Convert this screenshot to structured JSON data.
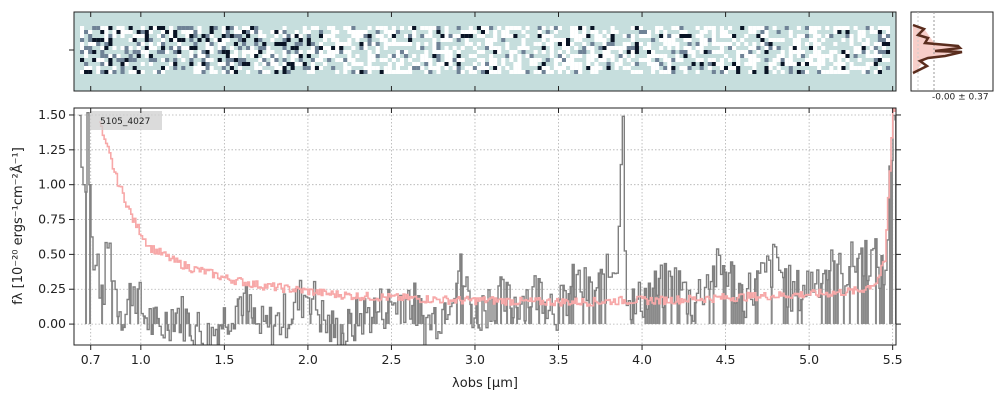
{
  "chart_data": [
    {
      "type": "heatmap",
      "description_free": true,
      "x_range": [
        0.6,
        5.52
      ],
      "y_ticks": [
        ""
      ],
      "colormap": [
        "#c6dedd",
        "#ffffff",
        "#6f8296",
        "#0a1425"
      ]
    },
    {
      "type": "line",
      "orientation": "horizontal-profile",
      "annotation": "-0.00 ± 0.37"
    },
    {
      "type": "line",
      "label": "5105_4027",
      "xlabel": "λobs [μm]",
      "ylabel": "fλ [10⁻²⁰ ergs⁻¹cm⁻²Å⁻¹]",
      "xlim": [
        0.6,
        5.52
      ],
      "ylim": [
        -0.15,
        1.55
      ],
      "x_ticks": [
        0.7,
        1.0,
        1.5,
        2.0,
        2.5,
        3.0,
        3.5,
        4.0,
        4.5,
        5.0,
        5.5
      ],
      "x_tick_labels": [
        "0.7",
        "1.0",
        "1.5",
        "2.0",
        "2.5",
        "3.0",
        "3.5",
        "4.0",
        "4.5",
        "5.0",
        "5.5"
      ],
      "y_ticks": [
        0.0,
        0.25,
        0.5,
        0.75,
        1.0,
        1.25,
        1.5
      ],
      "y_tick_labels": [
        "0.00",
        "0.25",
        "0.50",
        "0.75",
        "1.00",
        "1.25",
        "1.50"
      ],
      "grid": true,
      "colors": {
        "flux": "#7f7f7f",
        "model": "#f7a8a8",
        "model_dark": "#e46b6b"
      },
      "series": [
        {
          "id": "flux",
          "x": [
            0.63,
            0.66,
            0.68,
            0.7,
            0.72,
            0.74,
            0.76,
            0.8,
            0.85,
            0.9,
            0.95,
            1.0,
            1.1,
            1.2,
            1.3,
            1.4,
            1.5,
            1.6,
            1.7,
            1.8,
            1.9,
            2.0,
            2.1,
            2.2,
            2.3,
            2.4,
            2.5,
            2.6,
            2.7,
            2.8,
            2.9,
            3.0,
            3.1,
            3.2,
            3.3,
            3.4,
            3.5,
            3.6,
            3.7,
            3.8,
            3.85,
            3.88,
            3.9,
            3.95,
            4.0,
            4.1,
            4.2,
            4.3,
            4.4,
            4.5,
            4.6,
            4.7,
            4.8,
            4.9,
            5.0,
            5.1,
            5.2,
            5.3,
            5.4,
            5.45,
            5.5
          ],
          "y": [
            1.5,
            0.9,
            1.55,
            0.6,
            0.3,
            0.5,
            0.1,
            0.6,
            0.2,
            0.05,
            0.3,
            0.1,
            -0.05,
            0.1,
            0.0,
            -0.1,
            0.05,
            0.2,
            -0.05,
            0.0,
            0.1,
            0.25,
            0.0,
            -0.1,
            0.05,
            0.1,
            0.15,
            0.2,
            0.0,
            0.1,
            0.4,
            0.05,
            0.2,
            0.15,
            0.2,
            0.25,
            0.1,
            0.3,
            0.2,
            0.35,
            0.5,
            1.55,
            0.3,
            0.1,
            0.2,
            0.25,
            0.3,
            0.15,
            0.35,
            0.4,
            0.2,
            0.3,
            0.45,
            0.2,
            0.3,
            0.4,
            0.35,
            0.5,
            0.45,
            0.3,
            1.55
          ]
        },
        {
          "id": "model",
          "x": [
            0.75,
            0.78,
            0.8,
            0.85,
            0.9,
            0.95,
            1.0,
            1.05,
            1.1,
            1.2,
            1.3,
            1.4,
            1.5,
            1.7,
            1.9,
            2.1,
            2.3,
            2.5,
            2.7,
            2.9,
            3.1,
            3.3,
            3.5,
            3.7,
            3.9,
            4.1,
            4.3,
            4.5,
            4.7,
            4.9,
            5.1,
            5.3,
            5.4,
            5.45,
            5.5
          ],
          "y": [
            1.45,
            1.3,
            1.25,
            1.05,
            0.9,
            0.75,
            0.65,
            0.55,
            0.52,
            0.45,
            0.4,
            0.37,
            0.33,
            0.28,
            0.25,
            0.22,
            0.2,
            0.19,
            0.18,
            0.17,
            0.17,
            0.16,
            0.16,
            0.16,
            0.17,
            0.17,
            0.18,
            0.19,
            0.2,
            0.21,
            0.22,
            0.24,
            0.3,
            0.45,
            1.55
          ]
        }
      ]
    }
  ]
}
